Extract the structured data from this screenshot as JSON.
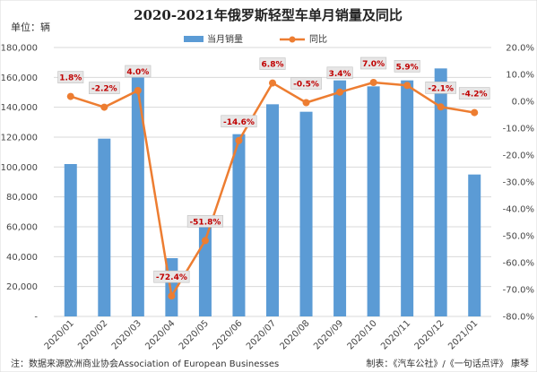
{
  "chart_data": {
    "type": "bar",
    "title": "2020-2021年俄罗斯轻型车单月销量及同比",
    "unit_label": "单位：辆",
    "categories": [
      "2020/01",
      "2020/02",
      "2020/03",
      "2020/04",
      "2020/05",
      "2020/06",
      "2020/07",
      "2020/08",
      "2020/09",
      "2020/10",
      "2020/11",
      "2020/12",
      "2021/01"
    ],
    "series": [
      {
        "name": "当月销量",
        "type": "bar",
        "axis": "left",
        "color": "#5b9bd5",
        "values": [
          102000,
          119000,
          160000,
          39000,
          62000,
          122000,
          142000,
          137000,
          158000,
          154000,
          158000,
          166000,
          95000
        ]
      },
      {
        "name": "同比",
        "type": "line",
        "axis": "right",
        "color": "#ed7d31",
        "values": [
          1.8,
          -2.2,
          4.0,
          -72.4,
          -51.8,
          -14.6,
          6.8,
          -0.5,
          3.4,
          7.0,
          5.9,
          -2.1,
          -4.2
        ],
        "labels": [
          "1.8%",
          "-2.2%",
          "4.0%",
          "-72.4%",
          "-51.8%",
          "-14.6%",
          "6.8%",
          "-0.5%",
          "3.4%",
          "7.0%",
          "5.9%",
          "-2.1%",
          "-4.2%"
        ]
      }
    ],
    "ylim_left": [
      0,
      180000
    ],
    "ylim_right": [
      -80,
      20
    ],
    "yticks_left": [
      "-",
      "20,000",
      "40,000",
      "60,000",
      "80,000",
      "100,000",
      "120,000",
      "140,000",
      "160,000",
      "180,000"
    ],
    "yticks_right": [
      "-80.0%",
      "-70.0%",
      "-60.0%",
      "-50.0%",
      "-40.0%",
      "-30.0%",
      "-20.0%",
      "-10.0%",
      "0.0%",
      "10.0%",
      "20.0%"
    ],
    "grid": true,
    "legend_position": "top-center"
  },
  "footer": {
    "source": "注：数据来源欧洲商业协会Association of European Businesses",
    "credit": "制表：《汽车公社》/《一句话点评》 康琴"
  }
}
